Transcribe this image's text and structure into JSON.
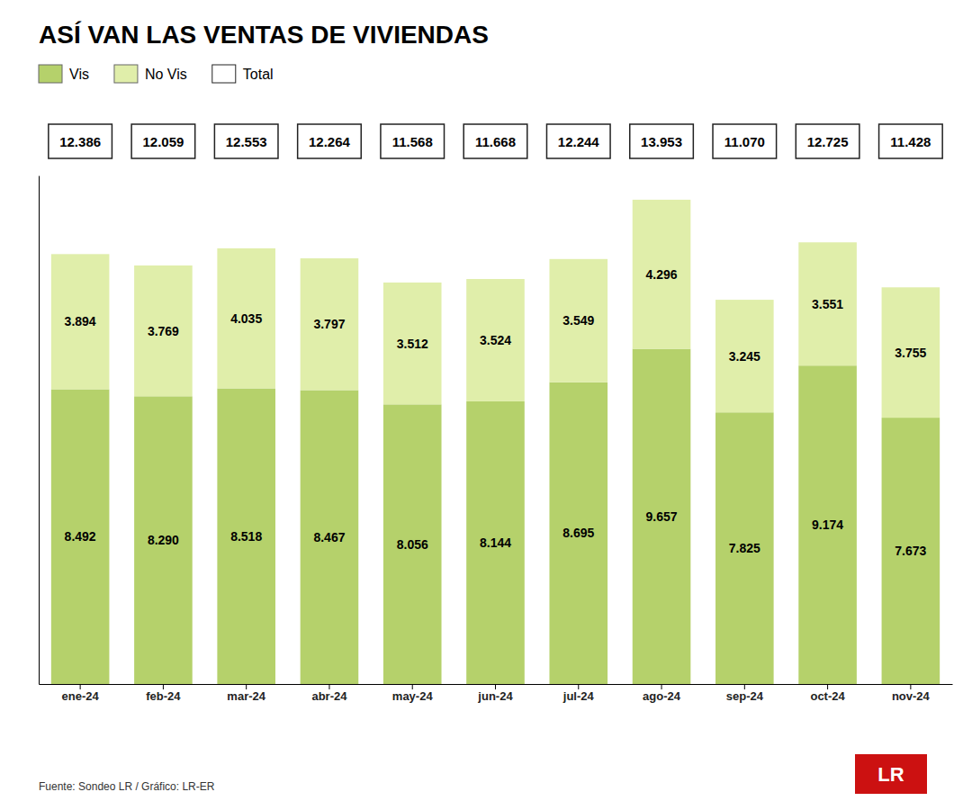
{
  "chart_data": {
    "type": "bar",
    "title": "ASÍ VAN LAS VENTAS DE VIVIENDAS",
    "categories": [
      "ene-24",
      "feb-24",
      "mar-24",
      "abr-24",
      "may-24",
      "jun-24",
      "jul-24",
      "ago-24",
      "sep-24",
      "oct-24",
      "nov-24"
    ],
    "series": [
      {
        "name": "Vis",
        "color": "#b5d16b",
        "values": [
          8492,
          8290,
          8518,
          8467,
          8056,
          8144,
          8695,
          9657,
          7825,
          9174,
          7673
        ],
        "value_labels": [
          "8.492",
          "8.290",
          "8.518",
          "8.467",
          "8.056",
          "8.144",
          "8.695",
          "9.657",
          "7.825",
          "9.174",
          "7.673"
        ]
      },
      {
        "name": "No Vis",
        "color": "#e0eeaa",
        "values": [
          3894,
          3769,
          4035,
          3797,
          3512,
          3524,
          3549,
          4296,
          3245,
          3551,
          3755
        ],
        "value_labels": [
          "3.894",
          "3.769",
          "4.035",
          "3.797",
          "3.512",
          "3.524",
          "3.549",
          "4.296",
          "3.245",
          "3.551",
          "3.755"
        ]
      }
    ],
    "totals": {
      "name": "Total",
      "values": [
        12386,
        12059,
        12553,
        12264,
        11568,
        11668,
        12244,
        13953,
        11070,
        12725,
        11428
      ],
      "value_labels": [
        "12.386",
        "12.059",
        "12.553",
        "12.264",
        "11.568",
        "11.668",
        "12.244",
        "13.953",
        "11.070",
        "12.725",
        "11.428"
      ]
    },
    "stacked": true,
    "data_labels": true,
    "ylim": [
      0,
      14650.65
    ],
    "tick_labels": "x",
    "grid": false,
    "legend": "top-left",
    "source": "Fuente: Sondeo LR / Gráfico: LR-ER",
    "logo": {
      "text": "LR",
      "color": "#cc1111"
    }
  }
}
